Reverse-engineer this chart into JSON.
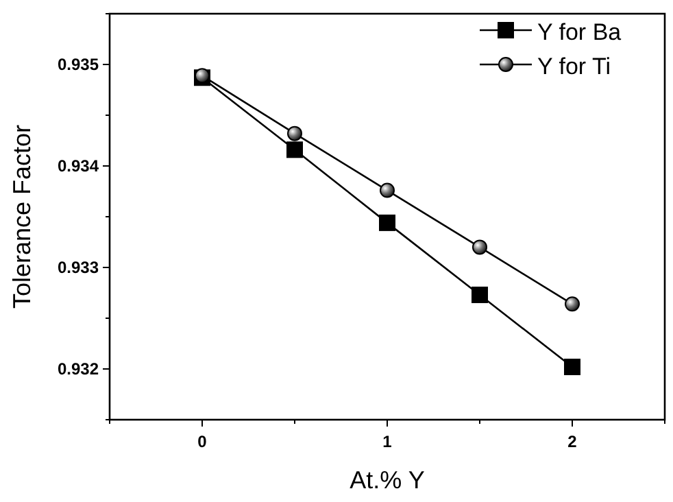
{
  "chart_data": {
    "type": "line",
    "xlabel": "At.% Y",
    "ylabel": "Tolerance Factor",
    "x": [
      0,
      0.5,
      1,
      1.5,
      2
    ],
    "series": [
      {
        "name": "Y for Ba",
        "color": "#000000",
        "marker": "square",
        "values": [
          0.93487,
          0.93416,
          0.93344,
          0.93273,
          0.93202
        ]
      },
      {
        "name": "Y for Ti",
        "color": "#000000",
        "marker": "circle",
        "values": [
          0.93489,
          0.93432,
          0.93376,
          0.9332,
          0.93264
        ]
      }
    ],
    "xlim": [
      -0.5,
      2.5
    ],
    "xticks": [
      {
        "value": -0.5,
        "label": null
      },
      0,
      {
        "value": 0.5,
        "label": null
      },
      1,
      {
        "value": 1.5,
        "label": null
      },
      2,
      {
        "value": 2.5,
        "label": null
      }
    ],
    "ylim": [
      0.9315,
      0.9355
    ],
    "yticks": [
      {
        "value": 0.9315,
        "label": null
      },
      0.932,
      {
        "value": 0.9325,
        "label": null
      },
      0.933,
      {
        "value": 0.9335,
        "label": null
      },
      0.934,
      {
        "value": 0.9345,
        "label": null
      },
      0.935,
      {
        "value": 0.9355,
        "label": null
      }
    ],
    "grid": false,
    "legend": "top right",
    "line_style": "solid"
  }
}
